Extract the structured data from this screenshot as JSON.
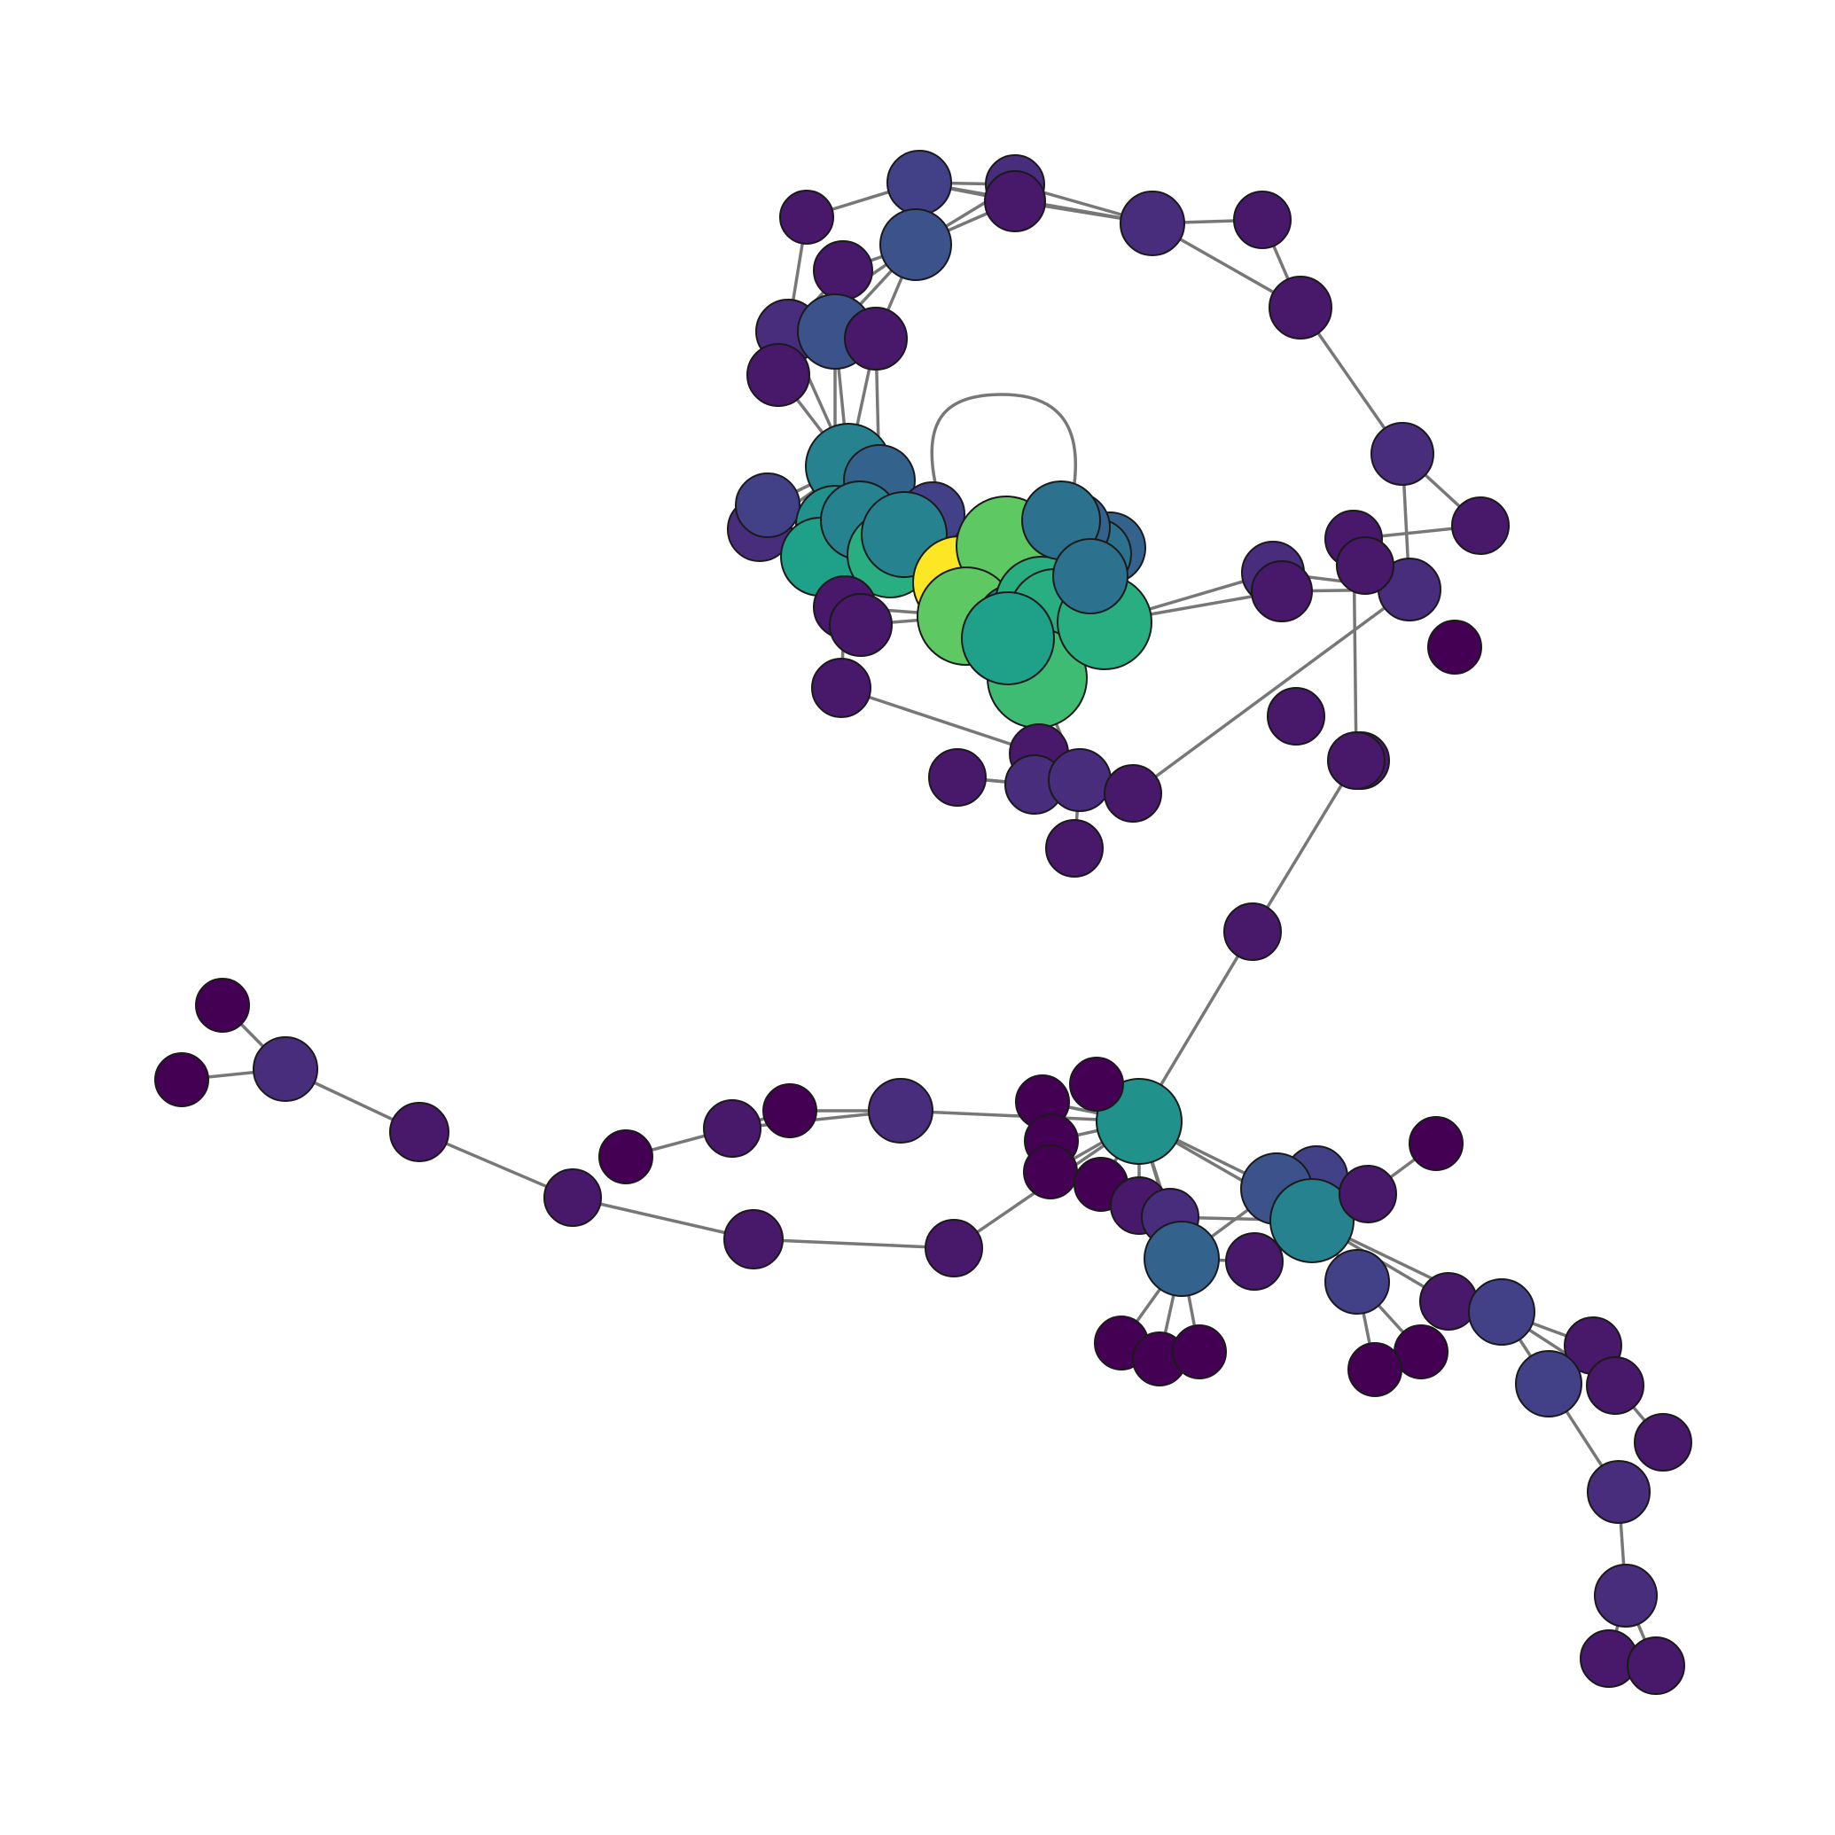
{
  "diagram": {
    "type": "network-graph",
    "colormap": "viridis",
    "node_colors": {
      "c0": "#440154",
      "c1": "#48186a",
      "c2": "#472d7b",
      "c3": "#424086",
      "c4": "#3b528b",
      "c5": "#33638d",
      "c6": "#2c728e",
      "c7": "#26828e",
      "c8": "#21918c",
      "c9": "#1fa088",
      "c10": "#28ae80",
      "c11": "#3fbc73",
      "c12": "#5ec962",
      "c13": "#fde725"
    },
    "edge_color": "#777777",
    "node_count": 103,
    "edge_count": 142,
    "has_self_loop": true
  }
}
